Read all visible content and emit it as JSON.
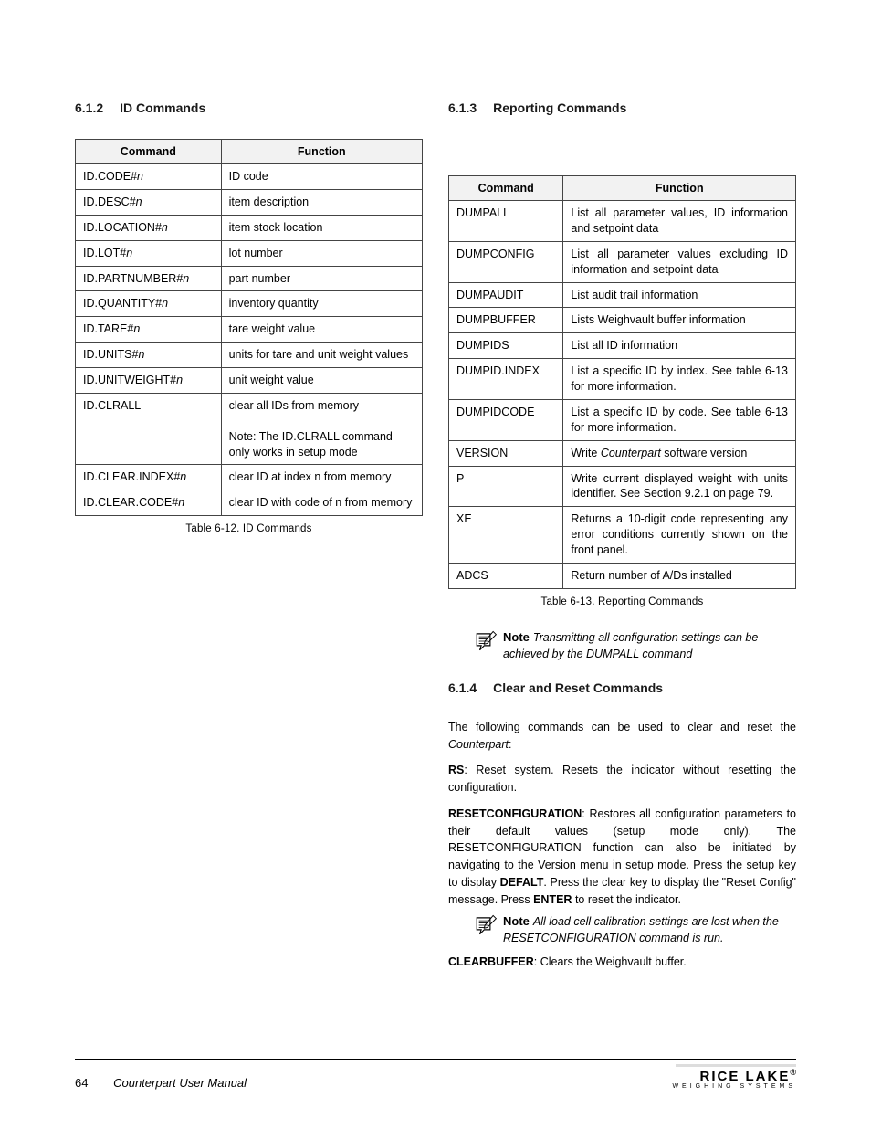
{
  "left": {
    "heading_num": "6.1.2",
    "heading_text": "ID Commands",
    "intro": "",
    "table": {
      "headers": [
        "Command",
        "Function"
      ],
      "rows": [
        [
          "ID.CODE#",
          "n",
          "ID code"
        ],
        [
          "ID.DESC#",
          "n",
          "item description"
        ],
        [
          "ID.LOCATION#",
          "n",
          "item stock location"
        ],
        [
          "ID.LOT#",
          "n",
          "lot number"
        ],
        [
          "ID.PARTNUMBER#",
          "n",
          "part number"
        ],
        [
          "ID.QUANTITY#",
          "n",
          "inventory quantity"
        ],
        [
          "ID.TARE#",
          "n",
          "tare weight value"
        ],
        [
          "ID.UNITS#",
          "n",
          "units for tare and unit weight values"
        ],
        [
          "ID.UNITWEIGHT#",
          "n",
          "unit weight value"
        ],
        [
          "ID.CLRALL",
          "",
          "clear all IDs from memory<br><br>Note: The ID.CLRALL command only works in setup mode"
        ],
        [
          "ID.CLEAR.INDEX#",
          "n",
          "clear ID at index n from memory"
        ],
        [
          "ID.CLEAR.CODE#",
          "n",
          "clear ID with code of n from memory"
        ]
      ]
    },
    "caption": "Table 6-12. ID Commands"
  },
  "right": {
    "heading_num": "6.1.3",
    "heading_text": "Reporting Commands",
    "intro": "",
    "table": {
      "headers": [
        "Command",
        "Function"
      ],
      "rows": [
        [
          "DUMPALL",
          "List all parameter values, ID information and setpoint data"
        ],
        [
          "DUMPCONFIG",
          "List all parameter values excluding ID information and setpoint data"
        ],
        [
          "DUMPAUDIT",
          "List audit trail information"
        ],
        [
          "DUMPBUFFER",
          "Lists Weighvault buffer information"
        ],
        [
          "DUMPIDS",
          "List all ID information"
        ],
        [
          "DUMPID.INDEX",
          "List a specific ID by index. See table 6-13 for more information."
        ],
        [
          "DUMPIDCODE",
          "List a specific ID by code. See table 6-13 for more information."
        ],
        [
          "VERSION",
          "Write <i>Counterpart</i> software version"
        ],
        [
          "P",
          "Write current displayed weight with units identifier. See Section 9.2.1 on page 79."
        ],
        [
          "XE",
          "Returns a 10-digit code representing any error conditions currently shown on the front panel."
        ],
        [
          "ADCS",
          "Return number of A/Ds installed"
        ]
      ]
    },
    "caption": "Table 6-13.  Reporting Commands",
    "note1": "Transmitting all configuration settings can be achieved by the DUMPALL command",
    "sec614_num": "6.1.4",
    "sec614_text": "Clear and Reset Commands",
    "para1_pre": "The following commands can be used to clear and reset the ",
    "para1_cp": "Counterpart",
    "para1_post": ":",
    "para_rs_b": "RS",
    "para_rs_t": ": Reset system. Resets the indicator without resetting the configuration.",
    "para_rc_b": "RESETCONFIGURATION",
    "para_rc_t": ": Restores all configuration parameters to their default values (setup mode only). The RESETCONFIGURATION function can also be initiated by navigating to the Version menu in setup mode. Press the setup key to display ",
    "para_rc_def": "DEFALT",
    "para_rc_t2": ". Press the clear key to display the \"Reset Config\" message. Press ",
    "para_rc_ent": "ENTER",
    "para_rc_t3": " to reset the indicator.",
    "note2": "All load cell calibration settings are lost when the RESETCONFIGURATION command is run.",
    "para_cb_b": "CLEARBUFFER",
    "para_cb_t": ": Clears the Weighvault buffer."
  },
  "footer": {
    "page": "64",
    "manual": "Counterpart User Manual",
    "logo_main": "RICE LAKE",
    "logo_sub": "WEIGHING SYSTEMS"
  },
  "colors": {
    "heading": "#1a1a1a",
    "table_border": "#444444",
    "table_header_bg": "#f2f2f2"
  }
}
